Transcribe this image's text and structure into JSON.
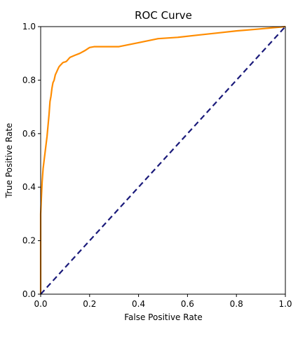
{
  "chart_data": {
    "type": "line",
    "title": "ROC Curve",
    "xlabel": "False Positive Rate",
    "ylabel": "True Positive Rate",
    "xlim": [
      0.0,
      1.0
    ],
    "ylim": [
      0.0,
      1.0
    ],
    "x_ticks": [
      "0.0",
      "0.2",
      "0.4",
      "0.6",
      "0.8",
      "1.0"
    ],
    "y_ticks": [
      "0.0",
      "0.2",
      "0.4",
      "0.6",
      "0.8",
      "1.0"
    ],
    "grid": false,
    "legend": "none",
    "series": [
      {
        "style": "solid",
        "color": "#ff8c00",
        "x": [
          0.0,
          0.0,
          0.003,
          0.006,
          0.01,
          0.014,
          0.018,
          0.022,
          0.026,
          0.03,
          0.034,
          0.038,
          0.042,
          0.046,
          0.05,
          0.055,
          0.06,
          0.065,
          0.07,
          0.075,
          0.08,
          0.085,
          0.09,
          0.095,
          0.1,
          0.105,
          0.11,
          0.115,
          0.12,
          0.14,
          0.16,
          0.18,
          0.2,
          0.22,
          0.24,
          0.28,
          0.32,
          0.4,
          0.48,
          0.56,
          0.64,
          0.72,
          0.8,
          0.88,
          0.94,
          1.0
        ],
        "y": [
          0.0,
          0.3,
          0.36,
          0.42,
          0.47,
          0.5,
          0.53,
          0.56,
          0.59,
          0.63,
          0.67,
          0.72,
          0.74,
          0.77,
          0.79,
          0.8,
          0.82,
          0.83,
          0.84,
          0.85,
          0.855,
          0.86,
          0.865,
          0.867,
          0.868,
          0.87,
          0.875,
          0.88,
          0.885,
          0.893,
          0.9,
          0.91,
          0.922,
          0.925,
          0.925,
          0.925,
          0.925,
          0.94,
          0.955,
          0.96,
          0.968,
          0.976,
          0.984,
          0.99,
          0.995,
          1.0
        ]
      },
      {
        "style": "dashed",
        "color": "#1a1a7a",
        "x": [
          0.0,
          1.0
        ],
        "y": [
          0.0,
          1.0
        ]
      }
    ]
  }
}
